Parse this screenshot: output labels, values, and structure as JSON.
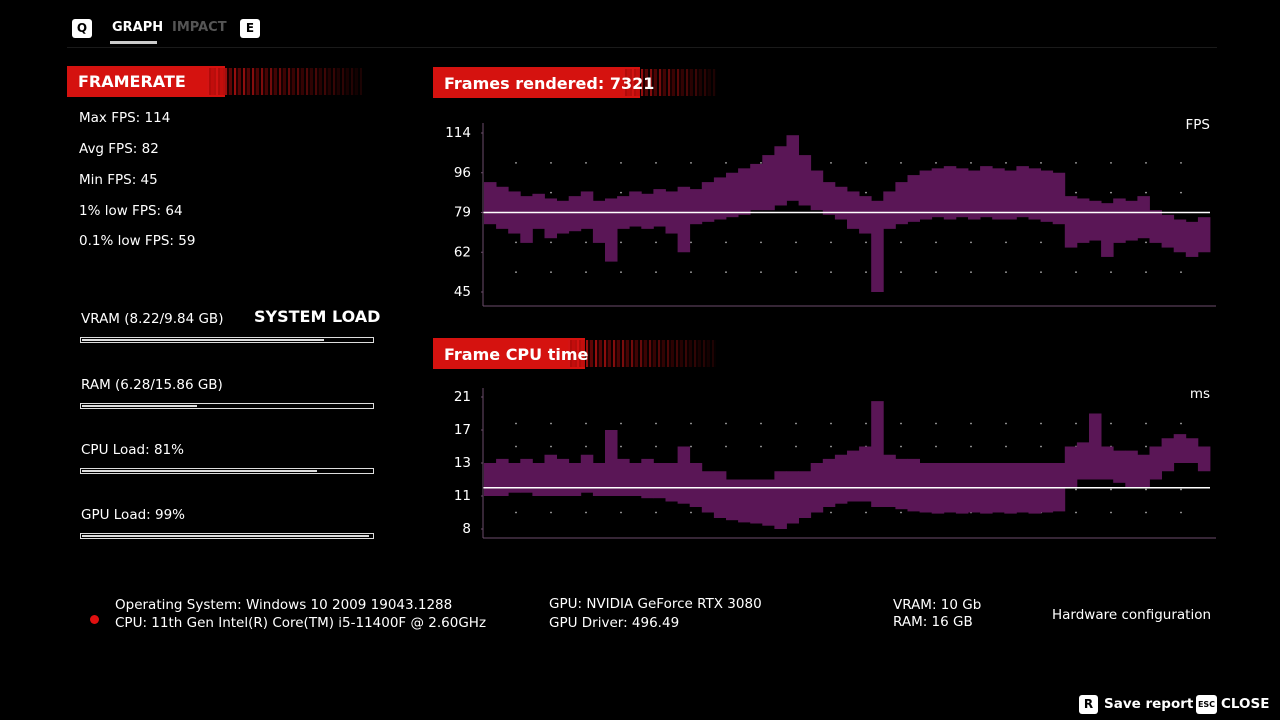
{
  "nav": {
    "left_key": "Q",
    "tabs": [
      "GRAPH",
      "IMPACT"
    ],
    "right_key": "E"
  },
  "framerate": {
    "title": "FRAMERATE",
    "stats": [
      "Max FPS: 114",
      "Avg FPS: 82",
      "Min FPS: 45",
      "1% low FPS: 64",
      "0.1% low FPS: 59"
    ]
  },
  "system_load": {
    "title": "SYSTEM LOAD",
    "bars": [
      {
        "label": "VRAM (8.22/9.84 GB)",
        "value": 8.22,
        "xlim": [
          0,
          9.84
        ]
      },
      {
        "label": "RAM (6.28/15.86 GB)",
        "value": 6.28,
        "xlim": [
          0,
          15.86
        ]
      },
      {
        "label": "CPU Load: 81%",
        "value": 81,
        "xlim": [
          0,
          100
        ]
      },
      {
        "label": "GPU Load: 99%",
        "value": 99,
        "xlim": [
          0,
          100
        ]
      }
    ]
  },
  "chart_data": [
    {
      "type": "range",
      "title": "Frames rendered: 7321",
      "unit": "FPS",
      "color": "#5a1656",
      "reference_line": 79,
      "reference_color": "#ffffff",
      "ylim": [
        39,
        118
      ],
      "yticks": [
        45,
        62,
        79,
        96,
        114
      ],
      "high": [
        92,
        90,
        88,
        86,
        87,
        85,
        84,
        86,
        88,
        84,
        85,
        86,
        88,
        87,
        89,
        88,
        90,
        89,
        92,
        94,
        96,
        98,
        100,
        104,
        108,
        113,
        104,
        97,
        92,
        90,
        88,
        86,
        84,
        88,
        92,
        95,
        97,
        98,
        99,
        98,
        97,
        99,
        98,
        97,
        99,
        98,
        97,
        96,
        86,
        85,
        84,
        83,
        85,
        84,
        86,
        80,
        78,
        76,
        75,
        77
      ],
      "low": [
        74,
        72,
        70,
        66,
        72,
        68,
        70,
        71,
        72,
        66,
        58,
        72,
        73,
        72,
        73,
        70,
        62,
        74,
        75,
        76,
        77,
        78,
        80,
        80,
        82,
        84,
        82,
        80,
        78,
        76,
        72,
        70,
        45,
        72,
        74,
        75,
        76,
        77,
        76,
        77,
        76,
        77,
        76,
        76,
        77,
        76,
        75,
        74,
        64,
        66,
        67,
        60,
        66,
        67,
        68,
        66,
        64,
        62,
        60,
        62
      ]
    },
    {
      "type": "range",
      "title": "Frame CPU time",
      "unit": "ms",
      "color": "#5a1656",
      "reference_line": 11.5,
      "reference_color": "#ffffff",
      "ylim": [
        7.2,
        22.1
      ],
      "yticks": [
        8,
        11,
        13,
        17,
        21
      ],
      "high": [
        13,
        13.5,
        13,
        13.5,
        13,
        14,
        13.5,
        13,
        14,
        13,
        17,
        13.5,
        13,
        13.5,
        13,
        13,
        15,
        13,
        12.5,
        12.5,
        12,
        12,
        12,
        12,
        12.5,
        12.5,
        12.5,
        13,
        13.5,
        14,
        14.5,
        15,
        20.5,
        14,
        13.5,
        13.5,
        13,
        13,
        13,
        13,
        13,
        13,
        13,
        13,
        13,
        13,
        13,
        13,
        15,
        15.5,
        19,
        15,
        14.5,
        14.5,
        14,
        15,
        16,
        16.5,
        16,
        15
      ],
      "low": [
        11,
        11,
        11.2,
        11.2,
        11,
        11,
        11,
        11,
        11.2,
        11,
        11,
        11,
        11,
        10.8,
        10.8,
        10.5,
        10.3,
        10,
        9.5,
        9,
        8.8,
        8.6,
        8.5,
        8.3,
        8,
        8.5,
        9,
        9.5,
        10,
        10.3,
        10.5,
        10.5,
        10,
        10,
        9.8,
        9.6,
        9.5,
        9.4,
        9.5,
        9.4,
        9.5,
        9.4,
        9.5,
        9.4,
        9.5,
        9.4,
        9.5,
        9.6,
        11.5,
        12,
        12,
        12,
        11.8,
        11.5,
        11.5,
        12,
        12.5,
        13,
        13,
        12.5
      ]
    }
  ],
  "hardware": {
    "os": "Operating System: Windows 10 2009 19043.1288",
    "cpu": "CPU: 11th Gen Intel(R) Core(TM) i5-11400F @ 2.60GHz",
    "gpu": "GPU: NVIDIA GeForce RTX 3080",
    "driver": "GPU Driver: 496.49",
    "vram": "VRAM: 10 Gb",
    "ram": "RAM: 16 GB",
    "title": "Hardware configuration"
  },
  "actions": {
    "save_key": "R",
    "save": "Save report",
    "close_key": "ESC",
    "close": "CLOSE"
  }
}
